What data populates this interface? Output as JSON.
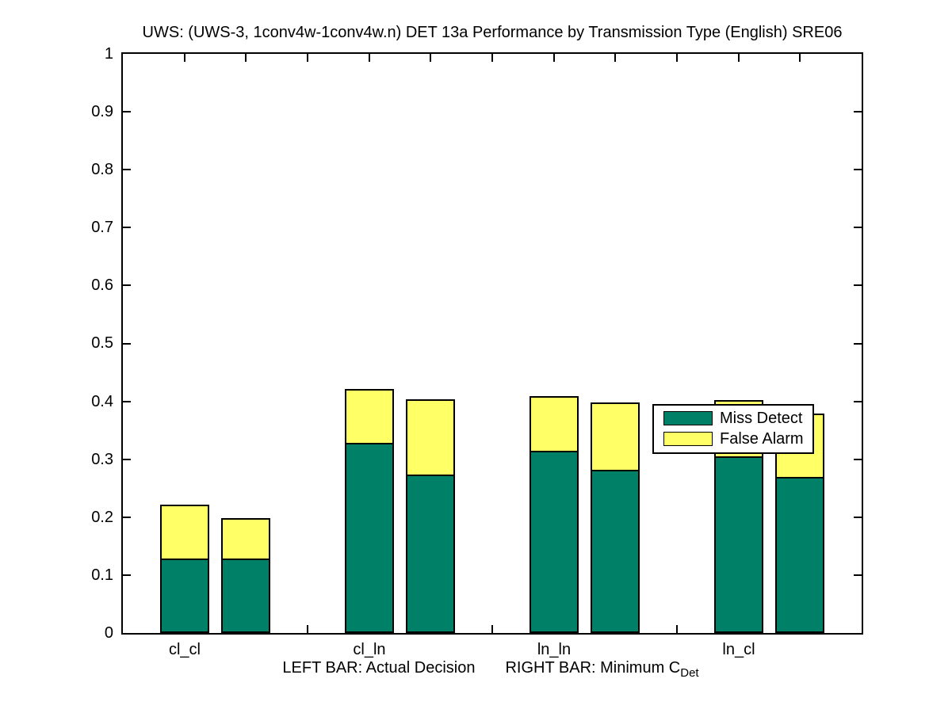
{
  "chart_data": {
    "type": "bar",
    "stacked": true,
    "title": "UWS: (UWS-3, 1conv4w-1conv4w.n) DET 13a Performance by Transmission Type (English) SRE06",
    "categories": [
      "cl_cl",
      "cl_ln",
      "ln_ln",
      "ln_cl"
    ],
    "bar_pair_meaning": {
      "left_bar": "Actual Decision",
      "right_bar": "Minimum C_Det"
    },
    "series": [
      {
        "name": "Miss Detect",
        "color": "#008066",
        "left_values": [
          0.128,
          0.329,
          0.315,
          0.305
        ],
        "right_values": [
          0.128,
          0.274,
          0.282,
          0.27
        ]
      },
      {
        "name": "False Alarm",
        "color": "#FFFF66",
        "left_values": [
          0.094,
          0.093,
          0.094,
          0.097
        ],
        "right_values": [
          0.071,
          0.129,
          0.116,
          0.109
        ]
      }
    ],
    "stack_totals": {
      "left_bars": [
        0.222,
        0.422,
        0.409,
        0.402
      ],
      "right_bars": [
        0.199,
        0.403,
        0.398,
        0.379
      ]
    },
    "ylim": [
      0,
      1
    ],
    "yticks": [
      "0",
      "0.1",
      "0.2",
      "0.3",
      "0.4",
      "0.5",
      "0.6",
      "0.7",
      "0.8",
      "0.9",
      "1"
    ],
    "xlabel": {
      "left": "LEFT BAR: Actual Decision",
      "right": "RIGHT BAR: Minimum C",
      "right_sub": "Det"
    },
    "legend": [
      {
        "label": "Miss Detect",
        "color": "#008066"
      },
      {
        "label": "False Alarm",
        "color": "#FFFF66"
      }
    ],
    "legend_position": "right-middle",
    "grid": false,
    "axis_color": "#000000",
    "background": "#FFFFFF"
  }
}
